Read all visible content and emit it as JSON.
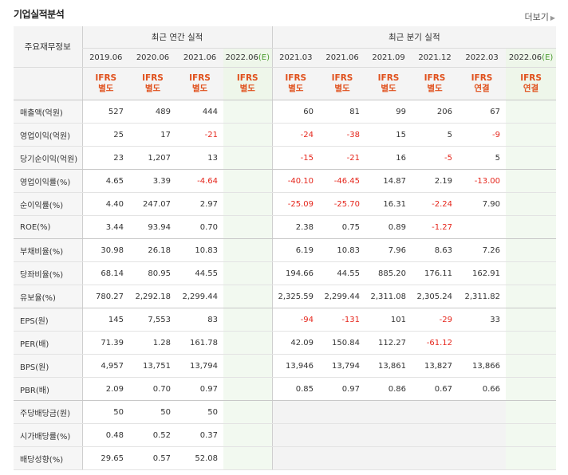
{
  "section_title": "기업실적분석",
  "more_link": "더보기",
  "row_header": "주요재무정보",
  "groups": {
    "annual": "최근 연간 실적",
    "quarterly": "최근 분기 실적"
  },
  "periods": [
    {
      "date": "2019.06",
      "est": "",
      "ifrs": "IFRS",
      "basis": "별도"
    },
    {
      "date": "2020.06",
      "est": "",
      "ifrs": "IFRS",
      "basis": "별도"
    },
    {
      "date": "2021.06",
      "est": "",
      "ifrs": "IFRS",
      "basis": "별도"
    },
    {
      "date": "2022.06",
      "est": "(E)",
      "ifrs": "IFRS",
      "basis": "별도"
    },
    {
      "date": "2021.03",
      "est": "",
      "ifrs": "IFRS",
      "basis": "별도"
    },
    {
      "date": "2021.06",
      "est": "",
      "ifrs": "IFRS",
      "basis": "별도"
    },
    {
      "date": "2021.09",
      "est": "",
      "ifrs": "IFRS",
      "basis": "별도"
    },
    {
      "date": "2021.12",
      "est": "",
      "ifrs": "IFRS",
      "basis": "별도"
    },
    {
      "date": "2022.03",
      "est": "",
      "ifrs": "IFRS",
      "basis": "연결"
    },
    {
      "date": "2022.06",
      "est": "(E)",
      "ifrs": "IFRS",
      "basis": "연결"
    }
  ],
  "rows": [
    {
      "label": "매출액(억원)",
      "values": [
        "527",
        "489",
        "444",
        "",
        "60",
        "81",
        "99",
        "206",
        "67",
        ""
      ]
    },
    {
      "label": "영업이익(억원)",
      "values": [
        "25",
        "17",
        "-21",
        "",
        "-24",
        "-38",
        "15",
        "5",
        "-9",
        ""
      ]
    },
    {
      "label": "당기순이익(억원)",
      "values": [
        "23",
        "1,207",
        "13",
        "",
        "-15",
        "-21",
        "16",
        "-5",
        "5",
        ""
      ]
    },
    {
      "label": "영업이익률(%)",
      "values": [
        "4.65",
        "3.39",
        "-4.64",
        "",
        "-40.10",
        "-46.45",
        "14.87",
        "2.19",
        "-13.00",
        ""
      ]
    },
    {
      "label": "순이익률(%)",
      "values": [
        "4.40",
        "247.07",
        "2.97",
        "",
        "-25.09",
        "-25.70",
        "16.31",
        "-2.24",
        "7.90",
        ""
      ]
    },
    {
      "label": "ROE(%)",
      "values": [
        "3.44",
        "93.94",
        "0.70",
        "",
        "2.38",
        "0.75",
        "0.89",
        "-1.27",
        "",
        ""
      ]
    },
    {
      "label": "부채비율(%)",
      "values": [
        "30.98",
        "26.18",
        "10.83",
        "",
        "6.19",
        "10.83",
        "7.96",
        "8.63",
        "7.26",
        ""
      ]
    },
    {
      "label": "당좌비율(%)",
      "values": [
        "68.14",
        "80.95",
        "44.55",
        "",
        "194.66",
        "44.55",
        "885.20",
        "176.11",
        "162.91",
        ""
      ]
    },
    {
      "label": "유보율(%)",
      "values": [
        "780.27",
        "2,292.18",
        "2,299.44",
        "",
        "2,325.59",
        "2,299.44",
        "2,311.08",
        "2,305.24",
        "2,311.82",
        ""
      ]
    },
    {
      "label": "EPS(원)",
      "values": [
        "145",
        "7,553",
        "83",
        "",
        "-94",
        "-131",
        "101",
        "-29",
        "33",
        ""
      ]
    },
    {
      "label": "PER(배)",
      "values": [
        "71.39",
        "1.28",
        "161.78",
        "",
        "42.09",
        "150.84",
        "112.27",
        "-61.12",
        "",
        ""
      ]
    },
    {
      "label": "BPS(원)",
      "values": [
        "4,957",
        "13,751",
        "13,794",
        "",
        "13,946",
        "13,794",
        "13,861",
        "13,827",
        "13,866",
        ""
      ]
    },
    {
      "label": "PBR(배)",
      "values": [
        "2.09",
        "0.70",
        "0.97",
        "",
        "0.85",
        "0.97",
        "0.86",
        "0.67",
        "0.66",
        ""
      ]
    },
    {
      "label": "주당배당금(원)",
      "values": [
        "50",
        "50",
        "50",
        "",
        "",
        "",
        "",
        "",
        "",
        ""
      ]
    },
    {
      "label": "시가배당률(%)",
      "values": [
        "0.48",
        "0.52",
        "0.37",
        "",
        "",
        "",
        "",
        "",
        "",
        ""
      ]
    },
    {
      "label": "배당성향(%)",
      "values": [
        "29.65",
        "0.57",
        "52.08",
        "",
        "",
        "",
        "",
        "",
        "",
        ""
      ]
    }
  ],
  "colors": {
    "ifrs": "#e0501c",
    "negative": "#e5261c",
    "estimate": "#4a9b2e"
  }
}
